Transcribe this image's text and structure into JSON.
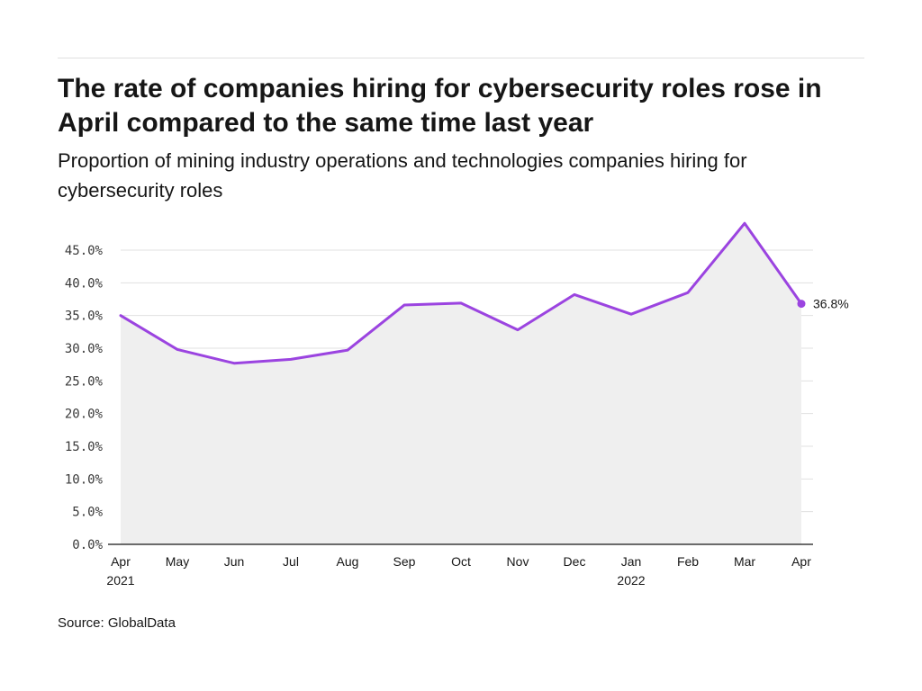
{
  "title": "The rate of companies hiring for cybersecurity roles rose in April compared to the same time last year",
  "subtitle": "Proportion of mining industry operations and technologies companies hiring for cybersecurity roles",
  "source": "Source: GlobalData",
  "colors": {
    "line": "#9b44e0",
    "area": "#efefef",
    "grid": "#e0e0e0",
    "axis": "#161616"
  },
  "chart_data": {
    "type": "line",
    "title": "",
    "xlabel": "",
    "ylabel": "",
    "categories": [
      "Apr",
      "May",
      "Jun",
      "Jul",
      "Aug",
      "Sep",
      "Oct",
      "Nov",
      "Dec",
      "Jan",
      "Feb",
      "Mar",
      "Apr"
    ],
    "category_years": [
      "2021",
      "",
      "",
      "",
      "",
      "",
      "",
      "",
      "",
      "2022",
      "",
      "",
      ""
    ],
    "series": [
      {
        "values": [
          35.0,
          29.8,
          27.7,
          28.3,
          29.7,
          36.6,
          36.9,
          32.8,
          38.2,
          35.2,
          38.5,
          49.1,
          36.8
        ]
      }
    ],
    "ylim": [
      0,
      49.5
    ],
    "yticks": [
      0,
      5,
      10,
      15,
      20,
      25,
      30,
      35,
      40,
      45
    ],
    "ytick_labels": [
      "0.0%",
      "5.0%",
      "10.0%",
      "15.0%",
      "20.0%",
      "25.0%",
      "30.0%",
      "35.0%",
      "40.0%",
      "45.0%"
    ],
    "end_label": "36.8%",
    "grid": true,
    "legend": "none",
    "area_fill": true
  }
}
